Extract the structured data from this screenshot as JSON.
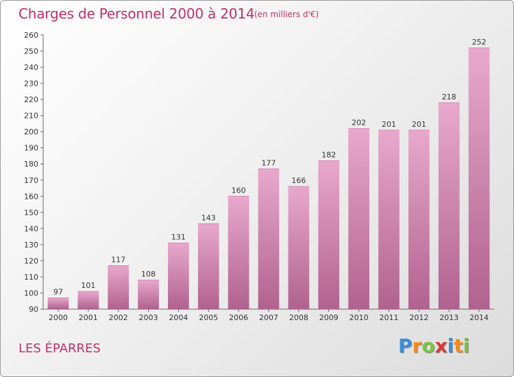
{
  "title": "Charges de Personnel 2000 à 2014",
  "subtitle": "(en milliers d'€)",
  "commune": "LES ÉPARRES",
  "logo": {
    "letters": [
      "P",
      "r",
      "o",
      "x",
      "i",
      "t",
      "i"
    ],
    "colors": [
      "#3a8fd6",
      "#f28c1e",
      "#7cc242",
      "#d63a3a",
      "#3a8fd6",
      "#f28c1e",
      "#7cc242"
    ]
  },
  "colors": {
    "accent": "#c0306a",
    "bar_top": "#e8a8cc",
    "bar_bottom": "#b0628e"
  },
  "chart_data": {
    "type": "bar",
    "categories": [
      "2000",
      "2001",
      "2002",
      "2003",
      "2004",
      "2005",
      "2006",
      "2007",
      "2008",
      "2009",
      "2010",
      "2011",
      "2012",
      "2013",
      "2014"
    ],
    "values": [
      97,
      101,
      117,
      108,
      131,
      143,
      160,
      177,
      166,
      182,
      202,
      201,
      201,
      218,
      252
    ],
    "title": "Charges de Personnel 2000 à 2014",
    "xlabel": "",
    "ylabel": "",
    "ylim": [
      90,
      260
    ],
    "yticks": [
      90,
      100,
      110,
      120,
      130,
      140,
      150,
      160,
      170,
      180,
      190,
      200,
      210,
      220,
      230,
      240,
      250,
      260
    ],
    "grid": false,
    "data_labels": true
  }
}
